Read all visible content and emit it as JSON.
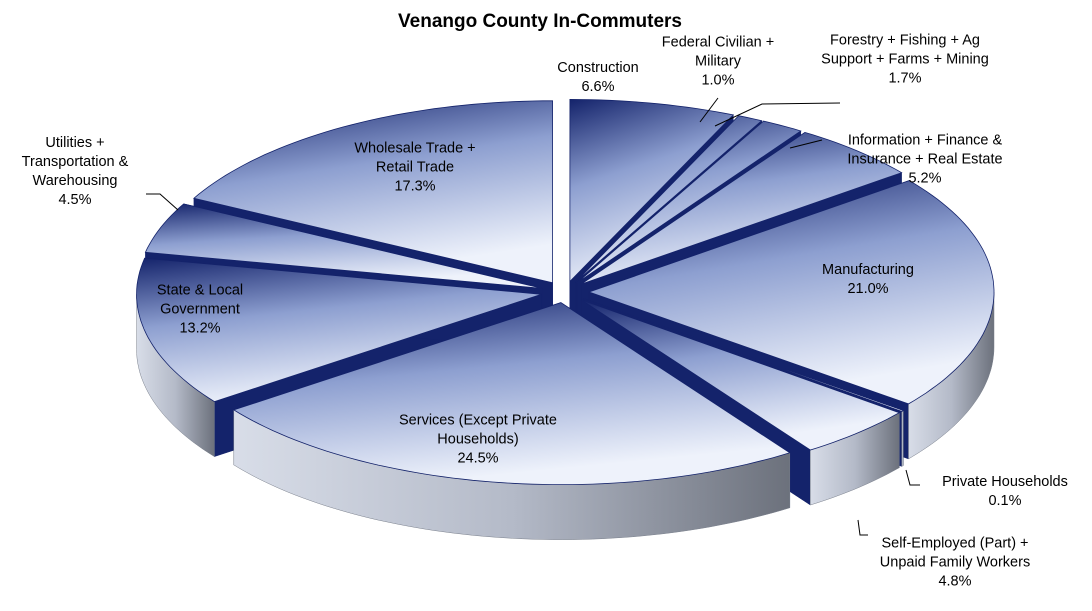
{
  "chart_data": {
    "type": "pie",
    "title": "Venango County In-Commuters",
    "categories": [
      "Construction",
      "Federal Civilian + Military",
      "Forestry + Fishing + Ag Support + Farms + Mining",
      "Information + Finance & Insurance + Real Estate",
      "Manufacturing",
      "Private Households",
      "Self-Employed (Part) + Unpaid Family Workers",
      "Services (Except Private Households)",
      "State & Local Government",
      "Utilities + Transportation & Warehousing",
      "Wholesale Trade + Retail Trade"
    ],
    "values": [
      6.6,
      1.0,
      1.7,
      5.2,
      21.0,
      0.1,
      4.8,
      24.5,
      13.2,
      4.5,
      17.3
    ],
    "value_labels": [
      "6.6%",
      "1.0%",
      "1.7%",
      "5.2%",
      "21.0%",
      "0.1%",
      "4.8%",
      "24.5%",
      "13.2%",
      "4.5%",
      "17.3%"
    ],
    "color": "#14236b"
  }
}
